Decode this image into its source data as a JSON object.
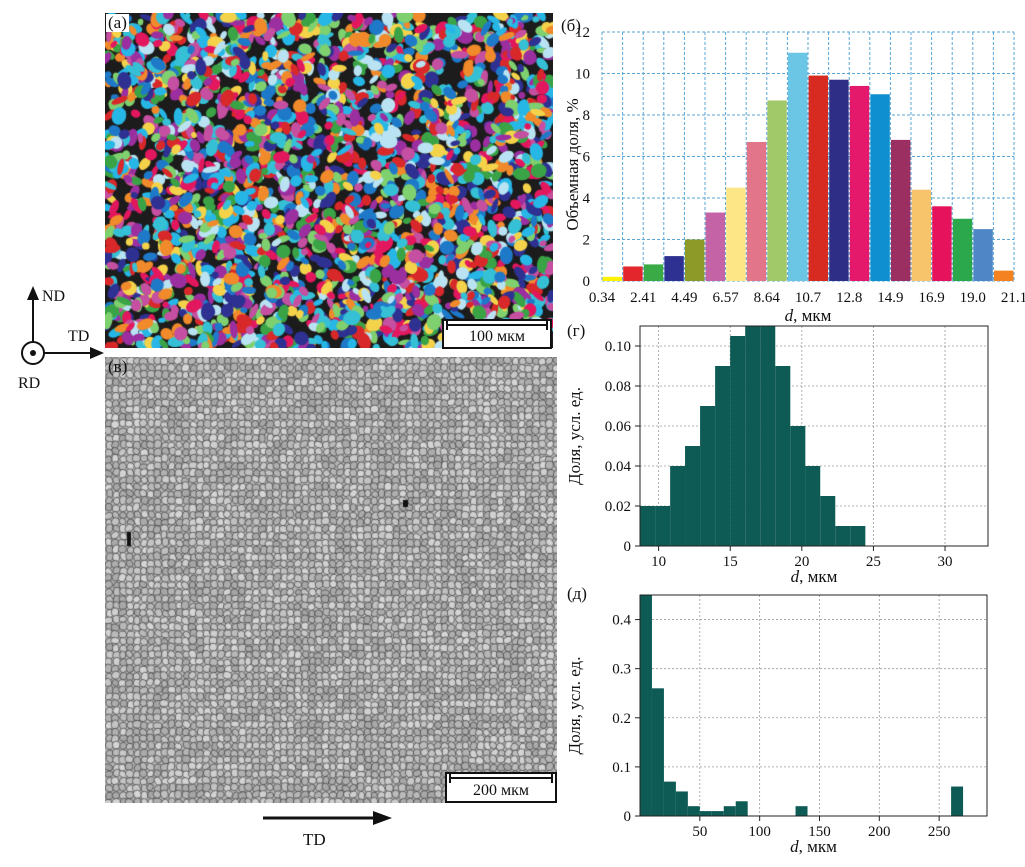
{
  "panels": {
    "a": {
      "letter": "(а)",
      "scalebar": "100 мкм"
    },
    "b": {
      "letter": "(б)"
    },
    "v": {
      "letter": "(в)",
      "scalebar": "200 мкм"
    },
    "g": {
      "letter": "(г)"
    },
    "d": {
      "letter": "(д)"
    }
  },
  "axes_icon": {
    "nd": "ND",
    "td": "TD",
    "rd": "RD",
    "td_bottom": "TD"
  },
  "chart_data": [
    {
      "id": "b",
      "type": "bar",
      "xlabel": "d, мкм",
      "ylabel": "Объемная доля, %",
      "ylim": [
        0,
        12
      ],
      "yticks": [
        0,
        2,
        4,
        6,
        8,
        10,
        12
      ],
      "xtick_labels": [
        "0.34",
        "2.41",
        "4.49",
        "6.57",
        "8.64",
        "10.7",
        "12.8",
        "14.9",
        "16.9",
        "19.0",
        "21.1"
      ],
      "grid": true,
      "values": [
        0.2,
        0.7,
        0.8,
        1.2,
        2.0,
        3.3,
        4.5,
        6.7,
        8.7,
        11.0,
        9.9,
        9.7,
        9.4,
        9.0,
        6.8,
        4.4,
        3.6,
        3.0,
        2.5,
        0.5
      ],
      "colors": [
        "#fff200",
        "#e3262b",
        "#3aaa47",
        "#2e3192",
        "#8d9a27",
        "#c463a6",
        "#fde686",
        "#e2758a",
        "#a1c96a",
        "#6bc6e6",
        "#d72b22",
        "#2f2e87",
        "#e4196c",
        "#0f8fcf",
        "#9b2f62",
        "#f7c46b",
        "#e7125c",
        "#2aa84b",
        "#4e86c6",
        "#f58220"
      ]
    },
    {
      "id": "g",
      "type": "bar",
      "xlabel": "d, мкм",
      "ylabel": "Доля, усл. ед.",
      "xlim": [
        8.7,
        33
      ],
      "ylim": [
        0,
        0.11
      ],
      "xticks": [
        10,
        15,
        20,
        25,
        30
      ],
      "yticks": [
        0,
        0.02,
        0.04,
        0.06,
        0.08,
        0.1
      ],
      "ytick_labels": [
        "0",
        "0.02",
        "0.04",
        "0.06",
        "0.08",
        "0.10"
      ],
      "grid": true,
      "bar_color": "#0e5a55",
      "x": [
        9.23,
        10.28,
        11.33,
        12.37,
        13.42,
        14.47,
        15.52,
        16.57,
        17.62,
        18.67,
        19.72,
        20.76,
        21.81,
        22.86,
        23.91
      ],
      "values": [
        0.02,
        0.02,
        0.04,
        0.05,
        0.07,
        0.09,
        0.105,
        0.11,
        0.11,
        0.09,
        0.06,
        0.04,
        0.025,
        0.01,
        0.01
      ]
    },
    {
      "id": "d",
      "type": "bar",
      "xlabel": "d, мкм",
      "ylabel": "Доля, усл. ед.",
      "xlim": [
        0,
        290
      ],
      "ylim": [
        0,
        0.45
      ],
      "xticks": [
        50,
        100,
        150,
        200,
        250
      ],
      "yticks": [
        0,
        0.1,
        0.2,
        0.3,
        0.4
      ],
      "ytick_labels": [
        "0",
        "0.1",
        "0.2",
        "0.3",
        "0.4"
      ],
      "grid": true,
      "bar_color": "#0e5a55",
      "x": [
        5,
        15,
        25,
        35,
        45,
        55,
        65,
        75,
        85,
        95,
        105,
        115,
        125,
        135,
        145,
        155,
        165,
        175,
        185,
        195,
        205,
        215,
        225,
        235,
        245,
        255,
        265,
        275,
        285
      ],
      "values": [
        0.45,
        0.26,
        0.07,
        0.05,
        0.02,
        0.01,
        0.01,
        0.02,
        0.03,
        0.0,
        0.0,
        0.0,
        0.0,
        0.02,
        0.0,
        0.0,
        0.0,
        0.0,
        0.0,
        0.0,
        0.0,
        0.0,
        0.0,
        0.0,
        0.0,
        0.0,
        0.06,
        0.0,
        0.0
      ]
    }
  ]
}
